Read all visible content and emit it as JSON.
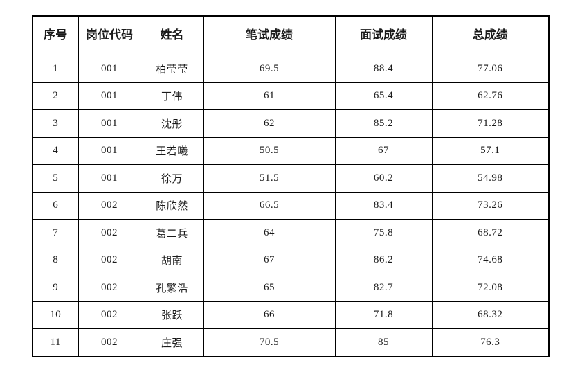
{
  "page": {
    "background_color": "#ffffff",
    "border_color": "#000000",
    "text_color": "#1a1a1a"
  },
  "table": {
    "columns": [
      {
        "key": "index",
        "label": "序号"
      },
      {
        "key": "code",
        "label": "岗位代码"
      },
      {
        "key": "name",
        "label": "姓名"
      },
      {
        "key": "written",
        "label": "笔试成绩"
      },
      {
        "key": "interview",
        "label": "面试成绩"
      },
      {
        "key": "total",
        "label": "总成绩"
      }
    ],
    "rows": [
      [
        "1",
        "001",
        "柏莹莹",
        "69.5",
        "88.4",
        "77.06"
      ],
      [
        "2",
        "001",
        "丁伟",
        "61",
        "65.4",
        "62.76"
      ],
      [
        "3",
        "001",
        "沈彤",
        "62",
        "85.2",
        "71.28"
      ],
      [
        "4",
        "001",
        "王若曦",
        "50.5",
        "67",
        "57.1"
      ],
      [
        "5",
        "001",
        "徐万",
        "51.5",
        "60.2",
        "54.98"
      ],
      [
        "6",
        "002",
        "陈欣然",
        "66.5",
        "83.4",
        "73.26"
      ],
      [
        "7",
        "002",
        "葛二兵",
        "64",
        "75.8",
        "68.72"
      ],
      [
        "8",
        "002",
        "胡南",
        "67",
        "86.2",
        "74.68"
      ],
      [
        "9",
        "002",
        "孔繁浩",
        "65",
        "82.7",
        "72.08"
      ],
      [
        "10",
        "002",
        "张跃",
        "66",
        "71.8",
        "68.32"
      ],
      [
        "11",
        "002",
        "庄强",
        "70.5",
        "85",
        "76.3"
      ]
    ]
  }
}
